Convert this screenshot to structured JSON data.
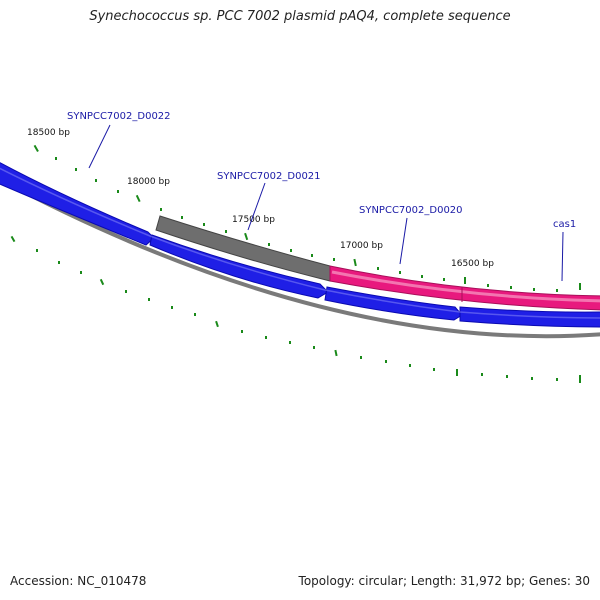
{
  "map": {
    "title": "Synechococcus sp. PCC 7002 plasmid pAQ4, complete sequence",
    "accession_label": "Accession: NC_010478",
    "summary_label": "Topology: circular; Length: 31,972 bp; Genes: 30",
    "colors": {
      "forward_gene": "#1f1fe6",
      "reverse_gene": "#6e6e6e",
      "crispr_gene": "#e8197e",
      "backbone": "#7a7a7a",
      "tick": "#1a8a1a",
      "gene_label": "#1a1aa6",
      "tick_label": "#111111"
    }
  },
  "ruler": {
    "labels": [
      "18500 bp",
      "18000 bp",
      "17500 bp",
      "17000 bp",
      "16500 bp"
    ]
  },
  "genes": [
    {
      "label": "SYNPCC7002_D0022"
    },
    {
      "label": "SYNPCC7002_D0021"
    },
    {
      "label": "SYNPCC7002_D0020"
    },
    {
      "label": "cas1"
    }
  ]
}
